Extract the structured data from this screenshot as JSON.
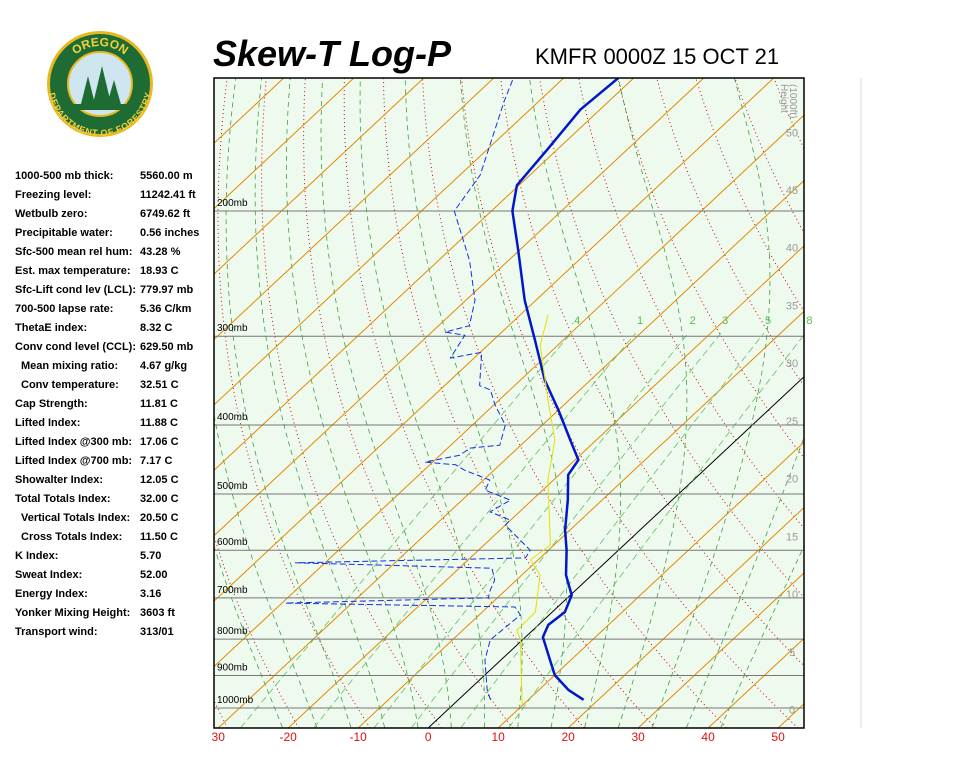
{
  "logo": {
    "top": "OREGON",
    "bottom": "DEPARTMENT OF FORESTRY"
  },
  "header": {
    "title": "Skew-T Log-P",
    "station": "KMFR 0000Z 15 OCT 21"
  },
  "stats": [
    {
      "label": "1000-500 mb thick:",
      "value": "5560.00 m"
    },
    {
      "label": "Freezing level:",
      "value": "11242.41 ft"
    },
    {
      "label": "Wetbulb zero:",
      "value": "6749.62 ft"
    },
    {
      "label": "Precipitable water:",
      "value": "0.56 inches"
    },
    {
      "label": "Sfc-500 mean rel hum:",
      "value": "43.28 %"
    },
    {
      "label": "Est. max temperature:",
      "value": "18.93 C"
    },
    {
      "label": "Sfc-Lift cond lev (LCL):",
      "value": "779.97 mb"
    },
    {
      "label": "700-500 lapse rate:",
      "value": "5.36 C/km"
    },
    {
      "label": "ThetaE index:",
      "value": "8.32 C"
    },
    {
      "label": "Conv cond level (CCL):",
      "value": "629.50 mb"
    },
    {
      "label": "Mean mixing ratio:",
      "value": "4.67 g/kg"
    },
    {
      "label": "Conv temperature:",
      "value": "32.51 C"
    },
    {
      "label": "Cap Strength:",
      "value": "11.81 C"
    },
    {
      "label": "Lifted Index:",
      "value": "11.88 C"
    },
    {
      "label": "Lifted Index @300 mb:",
      "value": "17.06 C"
    },
    {
      "label": "Lifted Index @700 mb:",
      "value": "7.17 C"
    },
    {
      "label": "Showalter Index:",
      "value": "12.05 C"
    },
    {
      "label": "Total Totals Index:",
      "value": "32.00 C"
    },
    {
      "label": "Vertical Totals Index:",
      "value": "20.50 C"
    },
    {
      "label": "Cross Totals Index:",
      "value": "11.50 C"
    },
    {
      "label": "K Index:",
      "value": "5.70"
    },
    {
      "label": "Sweat Index:",
      "value": "52.00"
    },
    {
      "label": "Energy Index:",
      "value": "3.16"
    },
    {
      "label": "Yonker Mixing Height:",
      "value": "3603 ft"
    },
    {
      "label": "Transport wind:",
      "value": "313/01"
    }
  ],
  "chart_data": {
    "type": "skew-t",
    "xlim": [
      -30.6,
      53.7
    ],
    "xticks": [
      {
        "value": -30,
        "label": "30"
      },
      -20,
      -10,
      0,
      10,
      20,
      30,
      40,
      50
    ],
    "ylim": [
      1067,
      130
    ],
    "log_y": true,
    "yticks": [
      {
        "value": 200,
        "label": "200mb"
      },
      {
        "value": 300,
        "label": "300mb"
      },
      {
        "value": 400,
        "label": "400mb"
      },
      {
        "value": 500,
        "label": "500mb"
      },
      {
        "value": 600,
        "label": "600mb"
      },
      {
        "value": 700,
        "label": "700mb"
      },
      {
        "value": 800,
        "label": "800mb"
      },
      {
        "value": 900,
        "label": "900mb"
      },
      {
        "value": 1000,
        "label": "1000mb"
      }
    ],
    "height_label": [
      "Height",
      "(1000ft)"
    ],
    "height_lim": [
      -1.6,
      54.7
    ],
    "height_ticks": [
      0,
      5,
      10,
      15,
      20,
      25,
      30,
      35,
      40,
      45,
      50
    ],
    "mixing_ratio_ticks": [
      {
        "value": 0.4,
        "label": ".4"
      },
      1,
      2,
      3,
      5,
      8
    ],
    "series": [
      {
        "color": "#0018c8",
        "width": 2.5,
        "dashed": false,
        "pressure": [
          974,
          943,
          899,
          842,
          795,
          764,
          733,
          694,
          650,
          600,
          562,
          510,
          470,
          448,
          420,
          381,
          346,
          304,
          267,
          227,
          200,
          184,
          164,
          144,
          130
        ],
        "temperature": [
          17.9,
          14.2,
          10.0,
          6.0,
          2.5,
          1.4,
          1.8,
          0.2,
          -3.7,
          -7.4,
          -10.7,
          -14.9,
          -18.7,
          -19.5,
          -23.7,
          -30.0,
          -36.5,
          -44.0,
          -51.6,
          -60.2,
          -67.0,
          -70.3,
          -71.4,
          -72.8,
          -72.2
        ]
      },
      {
        "color": "#1030e0",
        "width": 1,
        "dashed": true,
        "pressure": [
          974,
          943,
          856,
          802,
          740,
          721,
          712,
          700,
          683,
          661,
          636,
          625,
          615,
          600,
          553,
          544,
          530,
          510,
          494,
          478,
          463,
          455,
          451,
          441,
          431,
          427,
          400,
          375,
          357,
          352,
          316,
          322,
          299,
          296,
          290,
          267,
          235,
          200,
          178,
          140,
          130
        ],
        "temperature": [
          4.6,
          2.6,
          -2.3,
          -4.6,
          -4.1,
          -6.1,
          -39.5,
          -11.3,
          -12.2,
          -13.1,
          -15.3,
          -44.2,
          -12.1,
          -12.6,
          -20.0,
          -20.1,
          -24.2,
          -23.1,
          -28.2,
          -29.1,
          -34.2,
          -36.3,
          -41.1,
          -37.2,
          -36.8,
          -33.0,
          -35.3,
          -39.8,
          -42.8,
          -45.0,
          -49.8,
          -53.4,
          -54.8,
          -58.1,
          -55.6,
          -58.7,
          -65.5,
          -75.3,
          -77.1,
          -85.0,
          -87.2
        ]
      },
      {
        "color": "#e6e000",
        "width": 1,
        "dashed": false,
        "pressure": [
          990,
          802,
          777,
          733,
          650,
          619,
          590,
          478,
          420,
          369,
          309,
          280
        ],
        "temperature": [
          9.9,
          -0.3,
          -2.3,
          -2.4,
          -7.4,
          -11.1,
          -10.5,
          -20.8,
          -25.9,
          -33.0,
          -42.5,
          -46.0
        ]
      }
    ]
  }
}
